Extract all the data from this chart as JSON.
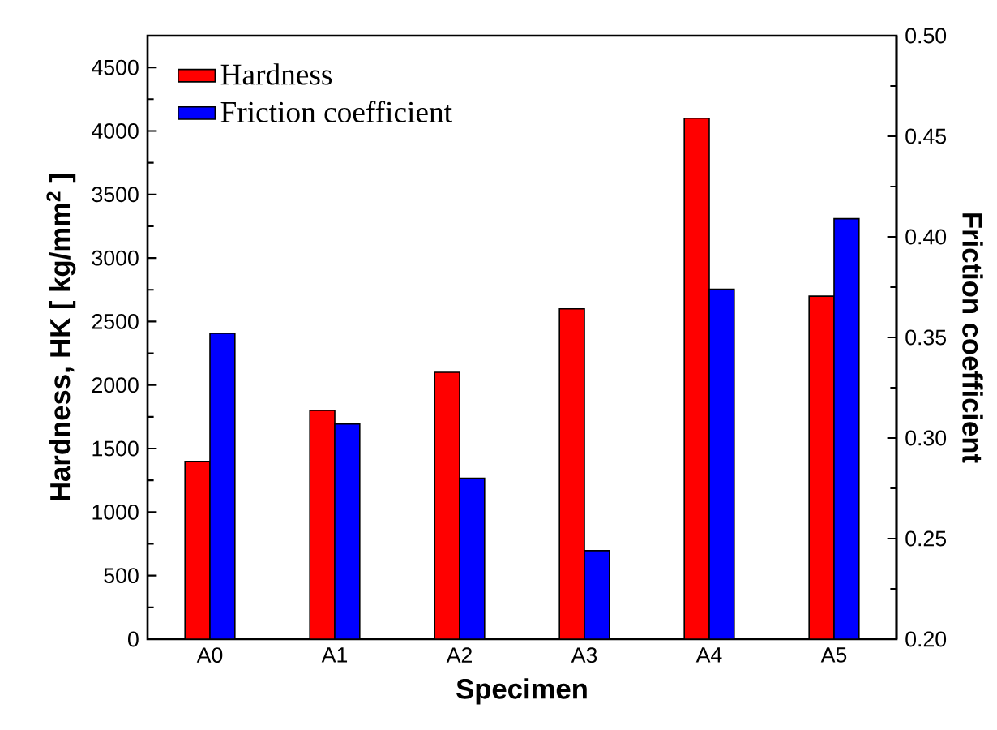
{
  "chart_data": {
    "type": "bar",
    "categories": [
      "A0",
      "A1",
      "A2",
      "A3",
      "A4",
      "A5"
    ],
    "xlabel": "Specimen",
    "ylabel": "Hardness, HK [ kg/mm$^{2}$ ]",
    "y2label": "Friction coefficient",
    "ylim": [
      0,
      4750
    ],
    "yticks": [
      0,
      500,
      1000,
      1500,
      2000,
      2500,
      3000,
      3500,
      4000,
      4500
    ],
    "y2lim": [
      0.2,
      0.5
    ],
    "y2ticks": [
      {
        "value": 0.2,
        "label": "0.20"
      },
      {
        "value": 0.25,
        "label": "0.25"
      },
      {
        "value": 0.3,
        "label": "0.30"
      },
      {
        "value": 0.35,
        "label": "0.35"
      },
      {
        "value": 0.4,
        "label": "0.40"
      },
      {
        "value": 0.45,
        "label": "0.45"
      },
      {
        "value": 0.5,
        "label": "0.50"
      }
    ],
    "legend": "top left",
    "series": [
      {
        "name": "Hardness",
        "color": "#ff0000",
        "values": [
          1400,
          1800,
          2100,
          2600,
          4100,
          2700
        ]
      },
      {
        "name": "Friction coefficient",
        "color": "#0000ff",
        "axis": "y2",
        "values": [
          0.352,
          0.307,
          0.28,
          0.244,
          0.374,
          0.409
        ]
      }
    ]
  }
}
